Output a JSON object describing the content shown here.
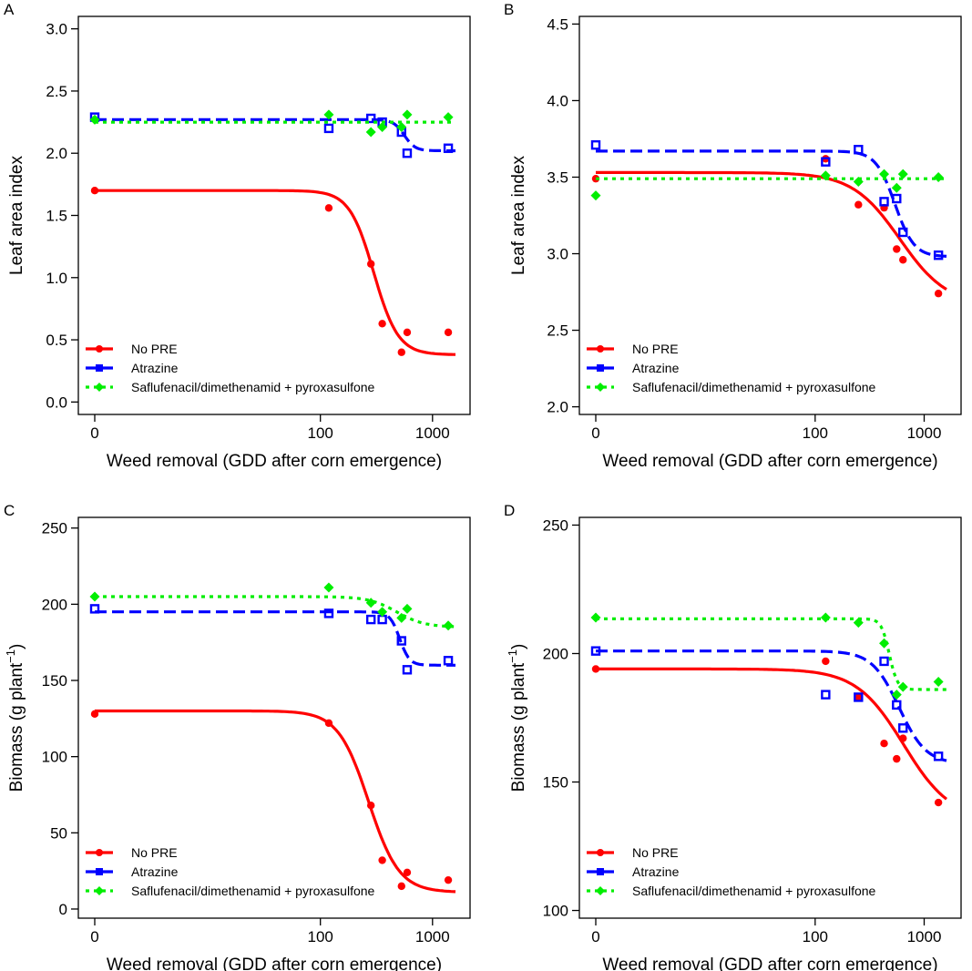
{
  "chart_data": [
    {
      "panel": "A",
      "type": "scatter",
      "xlabel": "Weed removal (GDD after corn emergence)",
      "ylabel": "Leaf area index",
      "ylabel_sup": "",
      "ylabel_end": "",
      "x_scale": "log(x+1)",
      "x_ticks": [
        0,
        100,
        1000
      ],
      "x_tick_labels": [
        "0",
        "100",
        "1000"
      ],
      "y_ticks": [
        0.0,
        0.5,
        1.0,
        1.5,
        2.0,
        2.5,
        3.0
      ],
      "y_tick_labels": [
        "0.0",
        "0.5",
        "1.0",
        "1.5",
        "2.0",
        "2.5",
        "3.0"
      ],
      "ylim": [
        -0.1,
        3.1
      ],
      "legend": "bottom-left",
      "series": [
        {
          "name": "No PRE",
          "color": "#ff0000",
          "line": "solid",
          "marker": "circle",
          "x": [
            0,
            119,
            283,
            357,
            530,
            595,
            1380
          ],
          "y": [
            1.7,
            1.56,
            1.11,
            0.63,
            0.4,
            0.56,
            0.56
          ],
          "fit": {
            "top": 1.7,
            "bottom": 0.38,
            "e": 300,
            "b": 4.0
          }
        },
        {
          "name": "Atrazine",
          "color": "#0000ff",
          "line": "dash",
          "marker": "square",
          "x": [
            0,
            119,
            283,
            357,
            530,
            595,
            1380
          ],
          "y": [
            2.29,
            2.2,
            2.28,
            2.25,
            2.17,
            2.0,
            2.04
          ],
          "fit": {
            "top": 2.27,
            "bottom": 2.02,
            "e": 560,
            "b": 9.0
          }
        },
        {
          "name": "Saflufenacil/dimethenamid + pyroxasulfone",
          "color": "#00ee00",
          "line": "dot",
          "marker": "diamond",
          "x": [
            0,
            119,
            283,
            357,
            530,
            595,
            1380
          ],
          "y": [
            2.27,
            2.31,
            2.17,
            2.21,
            2.21,
            2.31,
            2.29
          ],
          "fit": {
            "top": 2.25,
            "bottom": 2.25,
            "e": 300,
            "b": 4.0
          }
        }
      ]
    },
    {
      "panel": "B",
      "type": "scatter",
      "xlabel": "Weed removal (GDD after corn emergence)",
      "ylabel": "Leaf area index",
      "ylabel_sup": "",
      "ylabel_end": "",
      "x_scale": "log(x+1)",
      "x_ticks": [
        0,
        100,
        1000
      ],
      "x_tick_labels": [
        "0",
        "100",
        "1000"
      ],
      "y_ticks": [
        2.0,
        2.5,
        3.0,
        3.5,
        4.0,
        4.5
      ],
      "y_tick_labels": [
        "2.0",
        "2.5",
        "3.0",
        "3.5",
        "4.0",
        "4.5"
      ],
      "ylim": [
        1.95,
        4.55
      ],
      "legend": "bottom-left",
      "series": [
        {
          "name": "No PRE",
          "color": "#ff0000",
          "line": "solid",
          "marker": "circle",
          "x": [
            0,
            125,
            250,
            430,
            560,
            640,
            1350
          ],
          "y": [
            3.49,
            3.62,
            3.32,
            3.3,
            3.03,
            2.96,
            2.74
          ],
          "fit": {
            "top": 3.53,
            "bottom": 2.66,
            "e": 600,
            "b": 2.0
          }
        },
        {
          "name": "Atrazine",
          "color": "#0000ff",
          "line": "dash",
          "marker": "square",
          "x": [
            0,
            125,
            250,
            430,
            560,
            640,
            1350
          ],
          "y": [
            3.71,
            3.6,
            3.68,
            3.34,
            3.36,
            3.14,
            2.99
          ],
          "fit": {
            "top": 3.67,
            "bottom": 2.98,
            "e": 540,
            "b": 5.0
          }
        },
        {
          "name": "Saflufenacil/dimethenamid + pyroxasulfone",
          "color": "#00ee00",
          "line": "dot",
          "marker": "diamond",
          "x": [
            0,
            125,
            250,
            430,
            560,
            640,
            1350
          ],
          "y": [
            3.38,
            3.51,
            3.47,
            3.52,
            3.43,
            3.52,
            3.5
          ],
          "fit": {
            "top": 3.49,
            "bottom": 3.49,
            "e": 300,
            "b": 4.0
          }
        }
      ]
    },
    {
      "panel": "C",
      "type": "scatter",
      "xlabel": "Weed removal (GDD after corn emergence)",
      "ylabel": "Biomass (g plant",
      "ylabel_sup": "−1",
      "ylabel_end": ")",
      "x_scale": "log(x+1)",
      "x_ticks": [
        0,
        100,
        1000
      ],
      "x_tick_labels": [
        "0",
        "100",
        "1000"
      ],
      "y_ticks": [
        0,
        50,
        100,
        150,
        200,
        250
      ],
      "y_tick_labels": [
        "0",
        "50",
        "100",
        "150",
        "200",
        "250"
      ],
      "ylim": [
        -6,
        257
      ],
      "legend": "bottom-left",
      "series": [
        {
          "name": "No PRE",
          "color": "#ff0000",
          "line": "solid",
          "marker": "circle",
          "x": [
            0,
            119,
            283,
            357,
            530,
            595,
            1380
          ],
          "y": [
            128,
            122,
            68,
            32,
            15,
            24,
            19
          ],
          "fit": {
            "top": 130,
            "bottom": 11,
            "e": 270,
            "b": 3.2
          }
        },
        {
          "name": "Atrazine",
          "color": "#0000ff",
          "line": "dash",
          "marker": "square",
          "x": [
            0,
            119,
            283,
            357,
            530,
            595,
            1380
          ],
          "y": [
            197,
            194,
            190,
            190,
            176,
            157,
            163
          ],
          "fit": {
            "top": 195,
            "bottom": 160,
            "e": 510,
            "b": 10.0
          }
        },
        {
          "name": "Saflufenacil/dimethenamid + pyroxasulfone",
          "color": "#00ee00",
          "line": "dot",
          "marker": "diamond",
          "x": [
            0,
            119,
            283,
            357,
            530,
            595,
            1380
          ],
          "y": [
            205,
            211,
            201,
            195,
            191,
            197,
            186
          ],
          "fit": {
            "top": 205,
            "bottom": 185,
            "e": 480,
            "b": 3.5
          }
        }
      ]
    },
    {
      "panel": "D",
      "type": "scatter",
      "xlabel": "Weed removal (GDD after corn emergence)",
      "ylabel": "Biomass (g plant",
      "ylabel_sup": "−1",
      "ylabel_end": ")",
      "x_scale": "log(x+1)",
      "x_ticks": [
        0,
        100,
        1000
      ],
      "x_tick_labels": [
        "0",
        "100",
        "1000"
      ],
      "y_ticks": [
        100,
        150,
        200,
        250
      ],
      "y_tick_labels": [
        "100",
        "150",
        "200",
        "250"
      ],
      "ylim": [
        97,
        253
      ],
      "legend": "bottom-left",
      "series": [
        {
          "name": "No PRE",
          "color": "#ff0000",
          "line": "solid",
          "marker": "circle",
          "x": [
            0,
            125,
            250,
            430,
            560,
            640,
            1350
          ],
          "y": [
            194,
            197,
            183,
            165,
            159,
            167,
            142
          ],
          "fit": {
            "top": 194,
            "bottom": 135,
            "e": 650,
            "b": 2.0
          }
        },
        {
          "name": "Atrazine",
          "color": "#0000ff",
          "line": "dash",
          "marker": "square",
          "x": [
            0,
            125,
            250,
            430,
            560,
            640,
            1350
          ],
          "y": [
            201,
            184,
            183,
            197,
            180,
            171,
            160
          ],
          "fit": {
            "top": 201,
            "bottom": 157,
            "e": 590,
            "b": 3.5
          }
        },
        {
          "name": "Saflufenacil/dimethenamid + pyroxasulfone",
          "color": "#00ee00",
          "line": "dot",
          "marker": "diamond",
          "x": [
            0,
            125,
            250,
            430,
            560,
            640,
            1350
          ],
          "y": [
            214,
            214,
            212,
            204,
            184,
            187,
            189
          ],
          "fit": {
            "top": 213.5,
            "bottom": 186,
            "e": 480,
            "b": 12.0
          }
        }
      ]
    }
  ]
}
